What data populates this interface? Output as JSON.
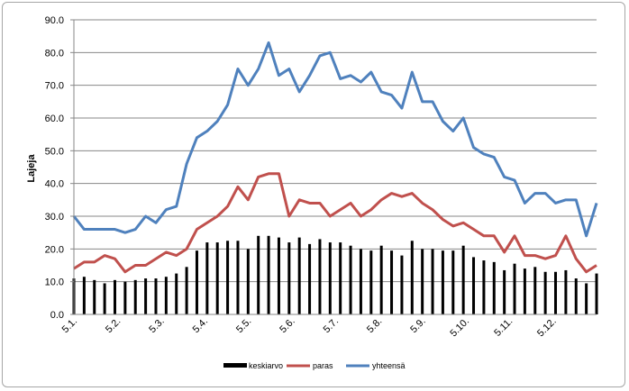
{
  "chart_data": {
    "type": "bar+line",
    "ylabel": "Lajeja",
    "ylim": [
      0,
      90
    ],
    "ytick_step": 10,
    "yticks": [
      "0.0",
      "10.0",
      "20.0",
      "30.0",
      "40.0",
      "50.0",
      "60.0",
      "70.0",
      "80.0",
      "90.0"
    ],
    "xtick_labels": [
      "5.1.",
      "5.2.",
      "5.3.",
      "5.4.",
      "5.5.",
      "5.6.",
      "5.7.",
      "5.8.",
      "5.9.",
      "5.10.",
      "5.11.",
      "5.12."
    ],
    "grid": true,
    "legend_position": "bottom",
    "series": [
      {
        "name": "keskiarvo",
        "type": "bar",
        "color": "#000000",
        "values": [
          11.0,
          11.5,
          10.5,
          9.5,
          10.5,
          10.0,
          10.5,
          11.0,
          11.0,
          11.5,
          12.5,
          14.5,
          19.5,
          22.0,
          22.0,
          22.5,
          22.5,
          20.0,
          24.0,
          24.0,
          23.5,
          22.0,
          23.5,
          21.5,
          23.0,
          22.0,
          22.0,
          21.0,
          20.0,
          19.5,
          21.0,
          19.5,
          18.0,
          22.5,
          20.0,
          20.0,
          19.5,
          19.5,
          21.0,
          17.5,
          16.5,
          16.0,
          13.5,
          15.5,
          14.0,
          14.5,
          13.0,
          13.0,
          13.5,
          11.0,
          9.5,
          12.5
        ]
      },
      {
        "name": "paras",
        "type": "line",
        "color": "#c0504d",
        "values": [
          14,
          16,
          16,
          18,
          17,
          13,
          15,
          15,
          17,
          19,
          18,
          20,
          26,
          28,
          30,
          33,
          39,
          35,
          42,
          43,
          43,
          30,
          35,
          34,
          34,
          30,
          32,
          34,
          30,
          32,
          35,
          37,
          36,
          37,
          34,
          32,
          29,
          27,
          28,
          26,
          24,
          24,
          19,
          24,
          18,
          18,
          17,
          18,
          24,
          17,
          13,
          15
        ]
      },
      {
        "name": "yhteensä",
        "type": "line",
        "color": "#4f81bd",
        "values": [
          30,
          26,
          26,
          26,
          26,
          25,
          26,
          30,
          28,
          32,
          33,
          46,
          54,
          56,
          59,
          64,
          75,
          70,
          75,
          83,
          73,
          75,
          68,
          73,
          79,
          80,
          72,
          73,
          71,
          74,
          68,
          67,
          63,
          74,
          65,
          65,
          59,
          56,
          60,
          51,
          49,
          48,
          42,
          41,
          34,
          37,
          37,
          34,
          35,
          35,
          24,
          34
        ]
      }
    ]
  }
}
